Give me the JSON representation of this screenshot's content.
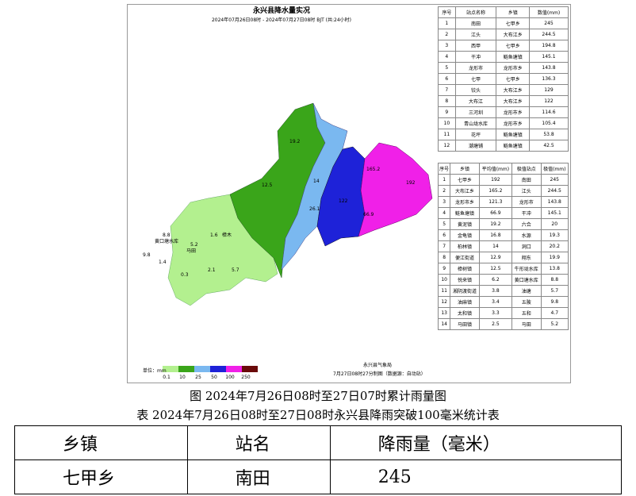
{
  "map": {
    "title": "永兴县降水量实况",
    "subtitle": "2024年07月26日08时 - 2024年07月27日08时 BJT (共:24小时)",
    "unit": "单位：mm",
    "legend": [
      "0.1",
      "10",
      "25",
      "50",
      "100",
      "250"
    ],
    "agency": "永兴县气象局",
    "made": "7月27日08时27分制图（数据源：自动站）",
    "labels": [
      "8.8",
      "黄口塘水库",
      "5.2",
      "马田",
      "1.6",
      "樟木",
      "9.8",
      "1.4",
      "0.3",
      "2.1",
      "5.7",
      "19.2",
      "12.5",
      "14",
      "26.1",
      "122",
      "192",
      "165.2",
      "66.9"
    ]
  },
  "station_table": {
    "header": [
      "序号",
      "站点名称",
      "乡镇",
      "数值(mm)"
    ],
    "rows": [
      [
        "1",
        "南田",
        "七甲乡",
        "245"
      ],
      [
        "2",
        "江头",
        "大布江乡",
        "244.5"
      ],
      [
        "3",
        "西甲",
        "七甲乡",
        "194.8"
      ],
      [
        "4",
        "干冲",
        "鲢鱼塘镇",
        "145.1"
      ],
      [
        "5",
        "龙形市",
        "龙形市乡",
        "143.8"
      ],
      [
        "6",
        "七甲",
        "七甲乡",
        "136.3"
      ],
      [
        "7",
        "铰头",
        "大布江乡",
        "129"
      ],
      [
        "8",
        "大布江",
        "大布江乡",
        "122"
      ],
      [
        "9",
        "三河圳",
        "龙形市乡",
        "114.6"
      ],
      [
        "10",
        "青山垅水库",
        "龙形市乡",
        "105.4"
      ],
      [
        "11",
        "花坪",
        "鲢鱼塘镇",
        "53.8"
      ],
      [
        "12",
        "潮塘铺",
        "鲢鱼塘镇",
        "42.5"
      ]
    ]
  },
  "town_table": {
    "header": [
      "序号",
      "乡镇",
      "平均值(mm)",
      "极值站点",
      "极值(mm)"
    ],
    "rows": [
      [
        "1",
        "七甲乡",
        "192",
        "南田",
        "245"
      ],
      [
        "2",
        "大布江乡",
        "165.2",
        "江头",
        "244.5"
      ],
      [
        "3",
        "龙形市乡",
        "121.3",
        "龙形市",
        "143.8"
      ],
      [
        "4",
        "鲢鱼塘镇",
        "66.9",
        "干冲",
        "145.1"
      ],
      [
        "5",
        "黄泥镇",
        "19.2",
        "六合",
        "20"
      ],
      [
        "6",
        "金龟镇",
        "16.8",
        "水源",
        "19.3"
      ],
      [
        "7",
        "柏林镇",
        "14",
        "洞口",
        "20.2"
      ],
      [
        "8",
        "便江街道",
        "12.9",
        "翔东",
        "19.9"
      ],
      [
        "9",
        "樟树镇",
        "12.5",
        "牛形垅水库",
        "13.8"
      ],
      [
        "10",
        "悦来镇",
        "6.2",
        "黄口塘水库",
        "8.8"
      ],
      [
        "11",
        "湘阴渡街道",
        "3.8",
        "油塘",
        "5.7"
      ],
      [
        "12",
        "油麻镇",
        "3.4",
        "五陂",
        "9.8"
      ],
      [
        "13",
        "太和镇",
        "3.3",
        "五和",
        "4.7"
      ],
      [
        "14",
        "马田镇",
        "2.5",
        "马田",
        "5.2"
      ]
    ]
  },
  "captions": [
    "图 2024年7月26日08时至27日07时累计雨量图",
    "表 2024年7月26日08时至27日08时永兴县降雨突破100毫米统计表"
  ],
  "summary_table": {
    "header": [
      "乡镇",
      "站名",
      "降雨量（毫米）"
    ],
    "rows": [
      [
        "七甲乡",
        "南田",
        "245"
      ]
    ]
  }
}
